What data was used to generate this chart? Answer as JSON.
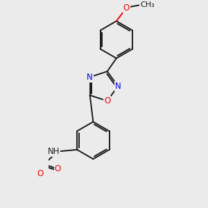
{
  "background_color": "#ebebeb",
  "bond_color": "#1a1a1a",
  "atom_colors": {
    "N": "#0000ee",
    "O": "#ee0000",
    "C": "#1a1a1a",
    "H": "#1a1a1a"
  },
  "lw": 1.4,
  "dbo": 0.055,
  "fs": 8.5
}
